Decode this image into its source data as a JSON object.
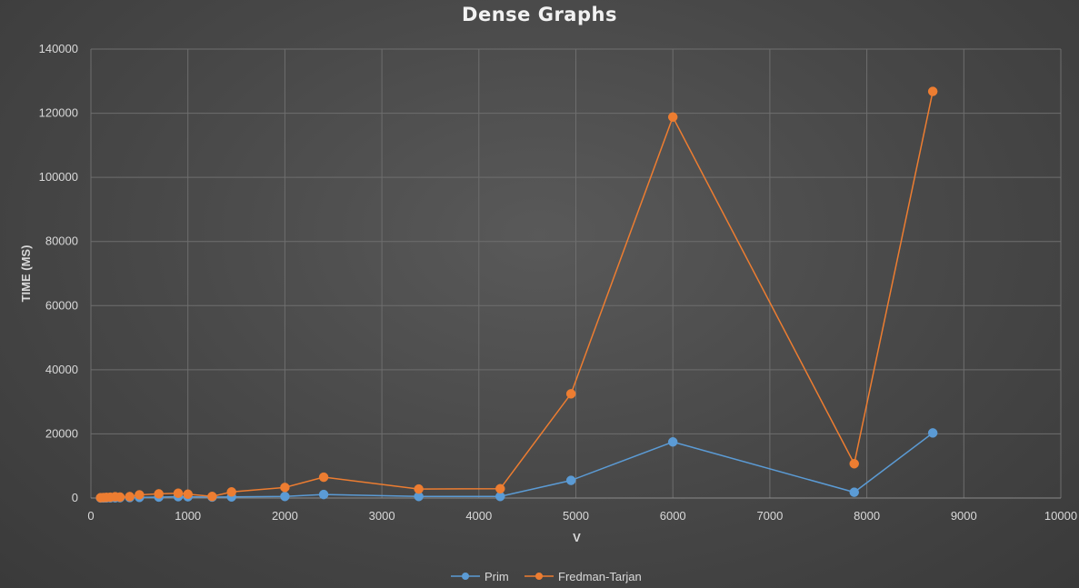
{
  "chart_data": {
    "type": "scatter",
    "title": "Dense Graphs",
    "xlabel": "V",
    "ylabel": "TIME (MS)",
    "xlim": [
      0,
      10000
    ],
    "ylim": [
      0,
      140000
    ],
    "xticks": [
      0,
      1000,
      2000,
      3000,
      4000,
      5000,
      6000,
      7000,
      8000,
      9000,
      10000
    ],
    "yticks": [
      0,
      20000,
      40000,
      60000,
      80000,
      100000,
      120000,
      140000
    ],
    "grid": true,
    "legend_position": "bottom",
    "series": [
      {
        "name": "Prim",
        "color": "#5b9bd5",
        "x": [
          100,
          130,
          160,
          200,
          250,
          300,
          400,
          500,
          700,
          900,
          1000,
          1250,
          1450,
          2000,
          2400,
          3380,
          4220,
          4950,
          6000,
          7870,
          8680
        ],
        "y": [
          30,
          40,
          50,
          70,
          90,
          110,
          160,
          200,
          300,
          420,
          400,
          300,
          350,
          500,
          1100,
          500,
          500,
          5500,
          17500,
          1800,
          20300
        ]
      },
      {
        "name": "Fredman-Tarjan",
        "color": "#ed7d31",
        "x": [
          100,
          130,
          160,
          200,
          250,
          300,
          400,
          500,
          700,
          900,
          1000,
          1250,
          1450,
          2000,
          2400,
          3380,
          4220,
          4950,
          6000,
          7870,
          8680
        ],
        "y": [
          100,
          150,
          200,
          250,
          400,
          300,
          450,
          1000,
          1300,
          1500,
          1200,
          500,
          1900,
          3300,
          6500,
          2800,
          2900,
          32500,
          118800,
          10700,
          126800
        ]
      }
    ]
  }
}
